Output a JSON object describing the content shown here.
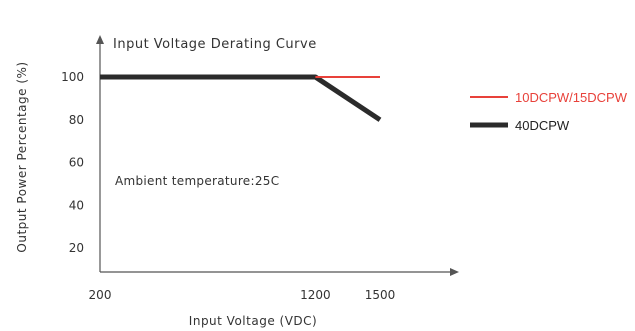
{
  "chart_data": {
    "type": "line",
    "title": "Input Voltage Derating Curve",
    "xlabel": "Input Voltage (VDC)",
    "ylabel": "Output Power Percentage (%)",
    "xlim": [
      200,
      1900
    ],
    "ylim": [
      0,
      100
    ],
    "x_ticks": [
      "200",
      "1200",
      "1500"
    ],
    "y_ticks": [
      "100",
      "80",
      "60",
      "40",
      "20"
    ],
    "annotation": "Ambient temperature:25C",
    "grid": false,
    "legend_position": "right",
    "series": [
      {
        "name": "10DCPW/15DCPW",
        "color": "#e8413a",
        "x": [
          200,
          1200,
          1500
        ],
        "y": [
          100,
          100,
          100
        ]
      },
      {
        "name": "40DCPW",
        "color": "#2b2b2b",
        "x": [
          200,
          1200,
          1500
        ],
        "y": [
          100,
          100,
          80
        ]
      }
    ]
  }
}
